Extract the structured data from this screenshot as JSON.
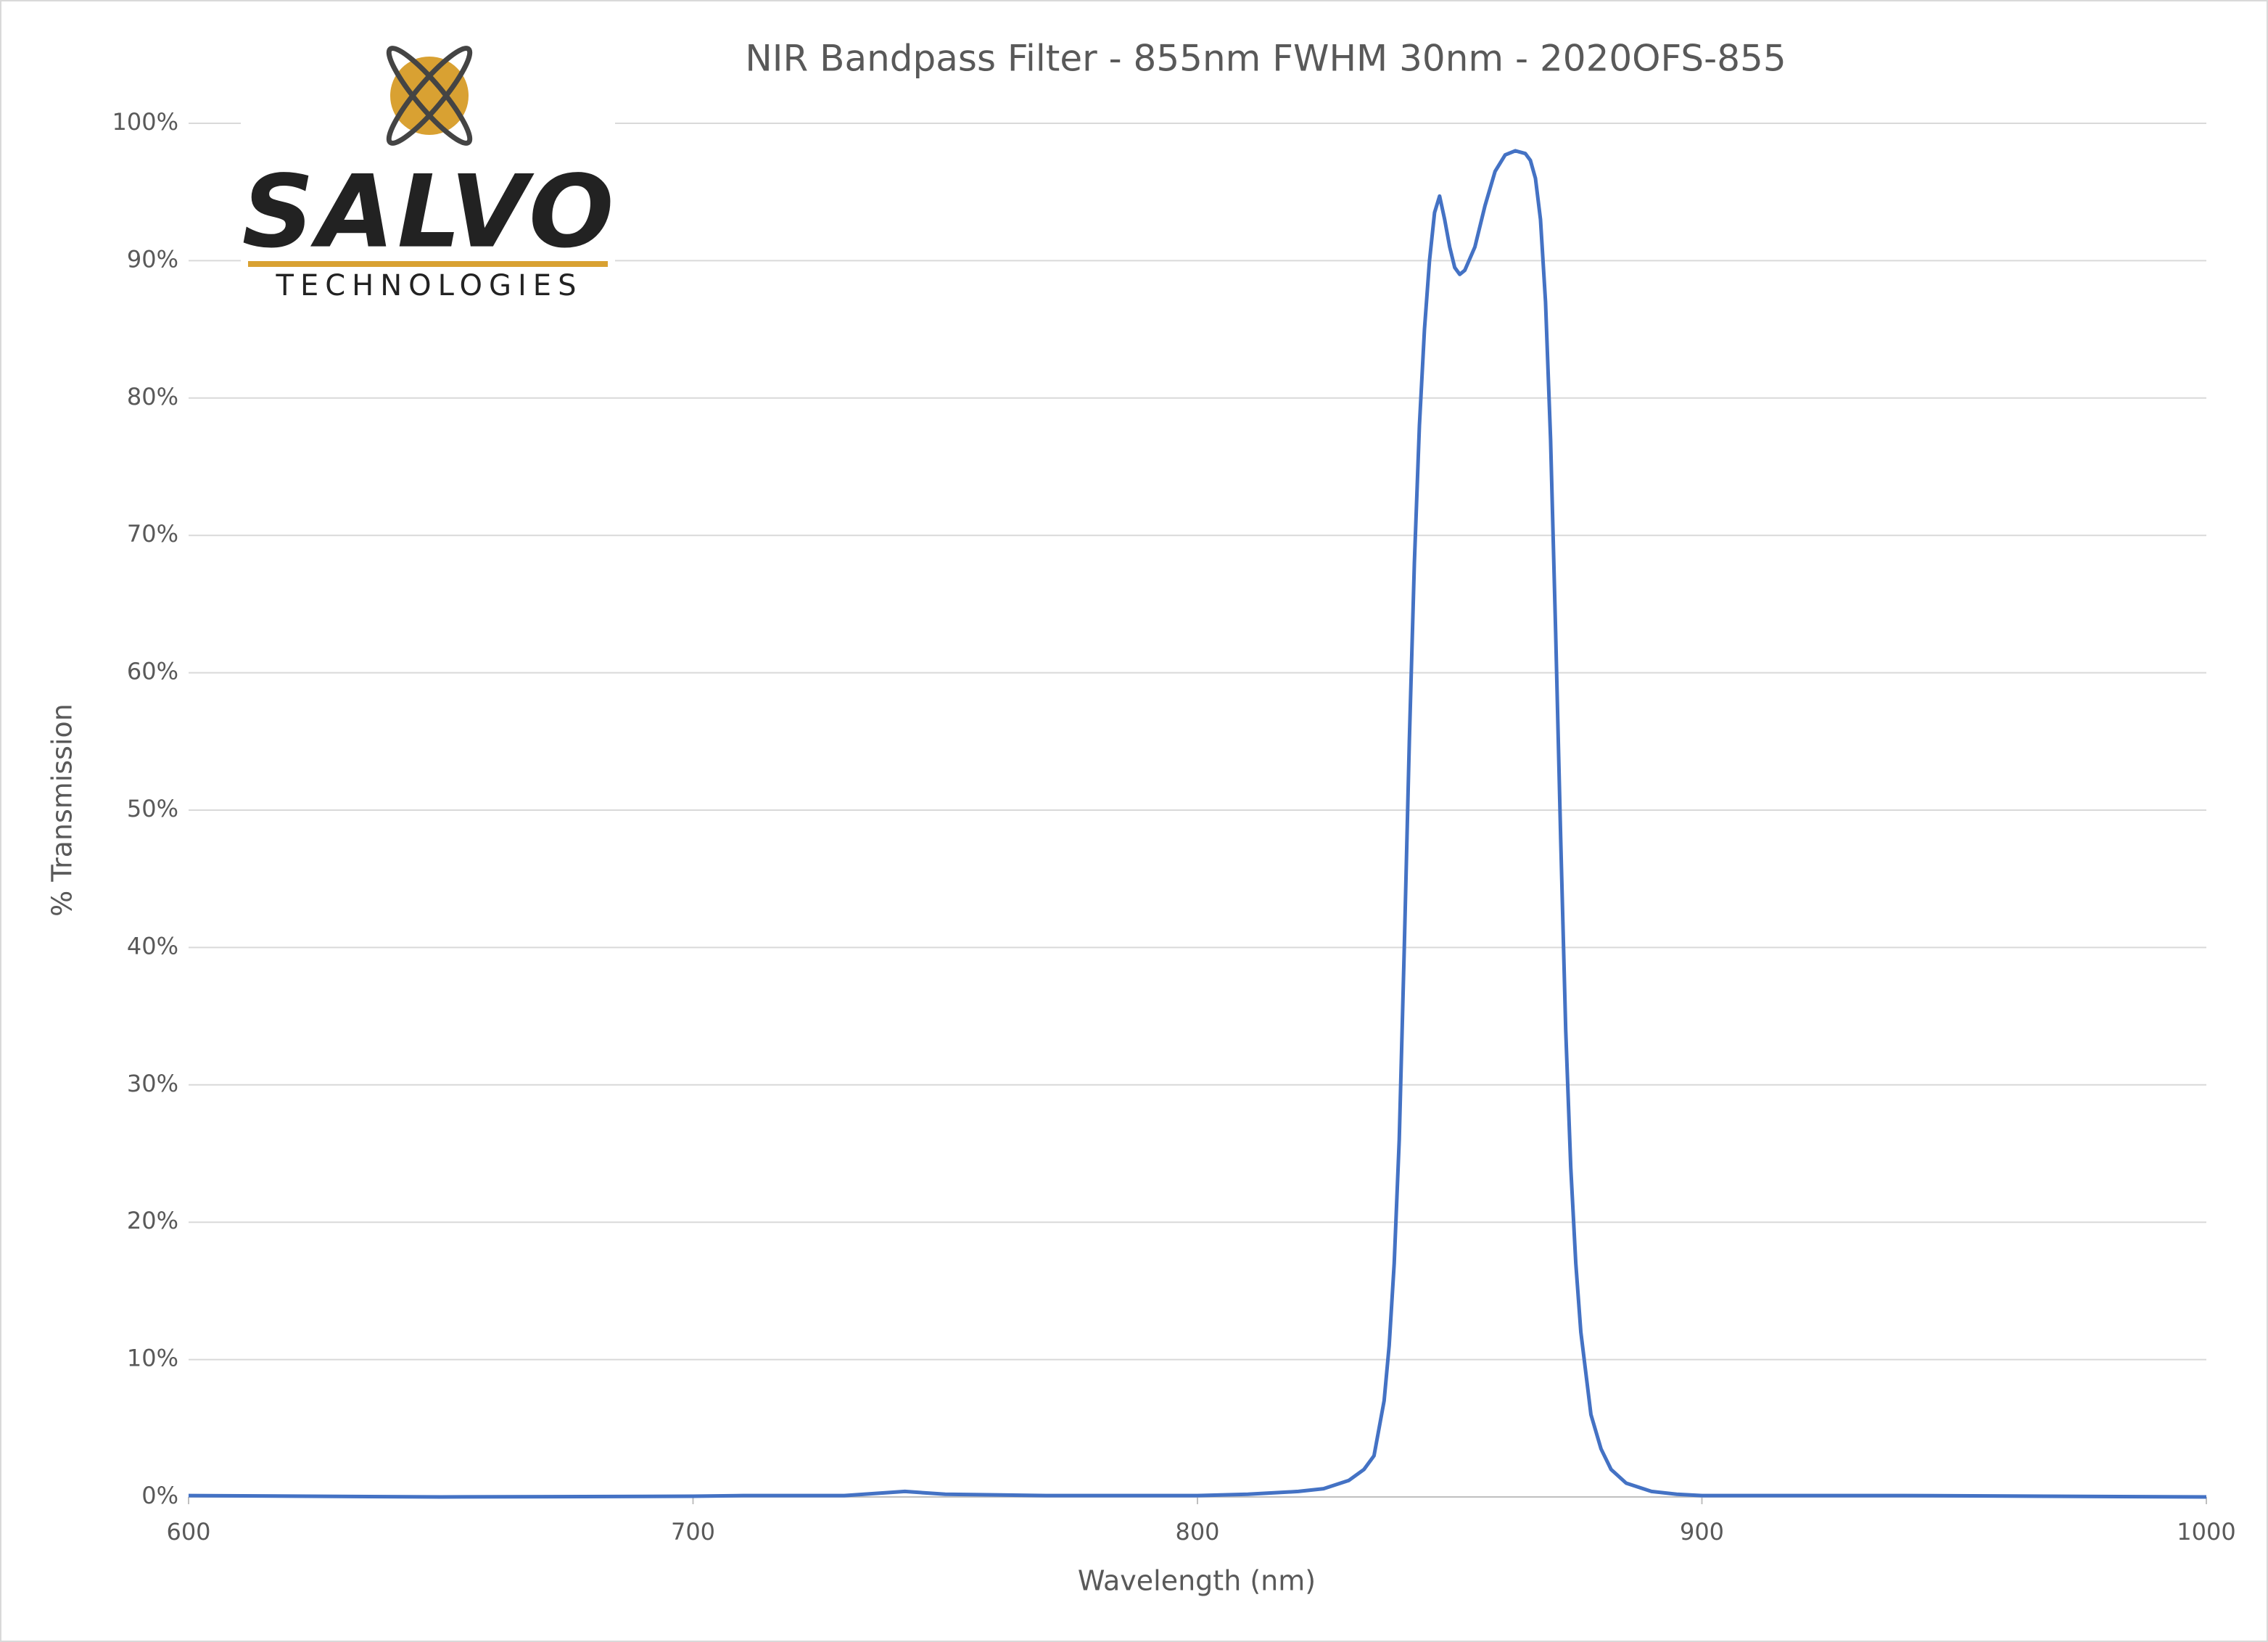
{
  "chart_data": {
    "type": "line",
    "title": "NIR Bandpass Filter - 855nm FWHM 30nm - 2020OFS-855",
    "x_label": "Wavelength (nm)",
    "y_label": "% Transmission",
    "logo_text": [
      "SALVO",
      "TECHNOLOGIES"
    ],
    "x": [
      600,
      650,
      700,
      710,
      730,
      742,
      750,
      770,
      800,
      810,
      820,
      825,
      830,
      833,
      835,
      837,
      838,
      839,
      840,
      841,
      842,
      843,
      844,
      845,
      846,
      847,
      848,
      849,
      850,
      851,
      852,
      853,
      855,
      857,
      859,
      861,
      863,
      865,
      866,
      867,
      868,
      869,
      870,
      871,
      872,
      873,
      874,
      875,
      876,
      878,
      880,
      882,
      885,
      890,
      895,
      900,
      920,
      940,
      1000
    ],
    "values": [
      0.1,
      0,
      0.05,
      0.1,
      0.1,
      0.4,
      0.2,
      0.1,
      0.1,
      0.2,
      0.4,
      0.6,
      1.2,
      2,
      3,
      7,
      11,
      17,
      26,
      40,
      55,
      68,
      78,
      85,
      90,
      93.5,
      94.7,
      93,
      91,
      89.5,
      89,
      89.3,
      91,
      94,
      96.5,
      97.7,
      98,
      97.8,
      97.3,
      96,
      93,
      87,
      77,
      63,
      48,
      34,
      24,
      17,
      12,
      6,
      3.5,
      2,
      1,
      0.4,
      0.2,
      0.1,
      0.1,
      0.1,
      0
    ],
    "color": "#4472c4",
    "xlim": [
      600,
      1000
    ],
    "ylim": [
      0,
      100
    ],
    "xticks": [
      600,
      700,
      800,
      900,
      1000
    ],
    "yticks": [
      {
        "value": 0,
        "label": "0%"
      },
      {
        "value": 10,
        "label": "10%"
      },
      {
        "value": 20,
        "label": "20%"
      },
      {
        "value": 30,
        "label": "30%"
      },
      {
        "value": 40,
        "label": "40%"
      },
      {
        "value": 50,
        "label": "50%"
      },
      {
        "value": 60,
        "label": "60%"
      },
      {
        "value": 70,
        "label": "70%"
      },
      {
        "value": 80,
        "label": "80%"
      },
      {
        "value": 90,
        "label": "90%"
      },
      {
        "value": 100,
        "label": "100%"
      }
    ],
    "grid": true
  }
}
